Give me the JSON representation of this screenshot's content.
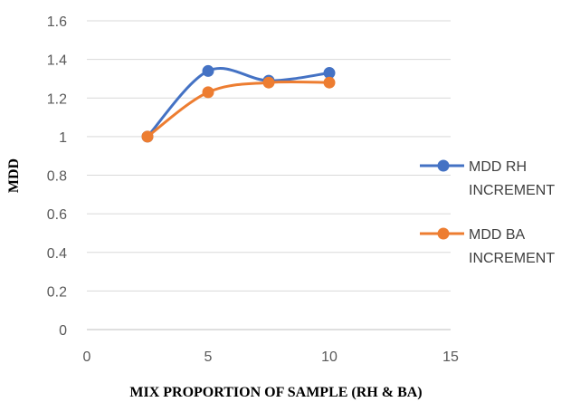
{
  "chart_data": {
    "type": "line",
    "title": "",
    "xlabel": "MIX PROPORTION OF SAMPLE (RH & BA)",
    "ylabel": "MDD",
    "xlim": [
      0,
      15
    ],
    "ylim": [
      0,
      1.6
    ],
    "xticks": [
      0,
      5,
      10,
      15
    ],
    "yticks": [
      0,
      0.2,
      0.4,
      0.6,
      0.8,
      1,
      1.2,
      1.4,
      1.6
    ],
    "grid": "horizontal",
    "smooth": true,
    "legend_position": "right",
    "series": [
      {
        "name_lines": [
          "MDD RH",
          "INCREMENT"
        ],
        "color": "#4472C4",
        "x": [
          2.5,
          5,
          7.5,
          10
        ],
        "y": [
          1.0,
          1.34,
          1.29,
          1.33
        ]
      },
      {
        "name_lines": [
          "MDD BA",
          "INCREMENT"
        ],
        "color": "#ED7D31",
        "x": [
          2.5,
          5,
          7.5,
          10
        ],
        "y": [
          1.0,
          1.23,
          1.28,
          1.28
        ]
      }
    ]
  }
}
